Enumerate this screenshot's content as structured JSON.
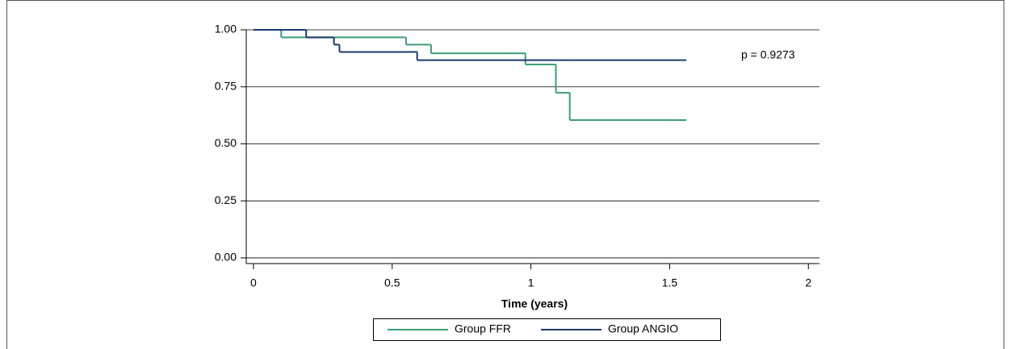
{
  "chart_data": {
    "type": "step",
    "xlabel": "Time (years)",
    "annotation": "p = 0.9273",
    "x": [
      0,
      0.1,
      0.19,
      0.29,
      0.31,
      0.55,
      0.59,
      0.64,
      0.98,
      1.09,
      1.14,
      1.56
    ],
    "series": [
      {
        "name": "Group FFR",
        "color": "#3d9e73",
        "values": [
          1.0,
          0.967,
          0.967,
          0.967,
          0.967,
          0.935,
          0.935,
          0.897,
          0.848,
          0.724,
          0.604,
          0.604
        ]
      },
      {
        "name": "Group ANGIO",
        "color": "#1b3a6b",
        "values": [
          1.0,
          1.0,
          0.967,
          0.935,
          0.903,
          0.903,
          0.867,
          0.867,
          0.867,
          0.867,
          0.867,
          0.867
        ]
      }
    ],
    "xlim": [
      -0.026,
      2.04
    ],
    "ylim": [
      -0.025,
      1.0
    ],
    "xticks": [
      0,
      0.5,
      1,
      1.5,
      2
    ],
    "yticks": [
      {
        "value": 0,
        "label": "0.00"
      },
      {
        "value": 0.25,
        "label": "0.25"
      },
      {
        "value": 0.5,
        "label": "0.50"
      },
      {
        "value": 0.75,
        "label": "0.75"
      },
      {
        "value": 1.0,
        "label": "1.00"
      }
    ],
    "grid": true
  }
}
